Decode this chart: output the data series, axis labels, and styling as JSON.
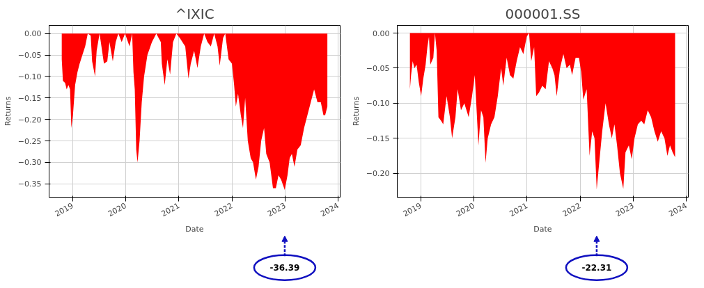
{
  "chart_data": [
    {
      "type": "area",
      "title": "^IXIC",
      "xlabel": "Date",
      "ylabel": "Returns",
      "grid": true,
      "x": [
        "2018-10-19",
        "2018-10-27",
        "2018-11-11",
        "2018-11-22",
        "2018-12-04",
        "2018-12-15",
        "2018-12-24",
        "2019-01-04",
        "2019-01-19",
        "2019-02-04",
        "2019-02-19",
        "2019-03-10",
        "2019-03-29",
        "2019-04-16",
        "2019-05-06",
        "2019-05-16",
        "2019-06-05",
        "2019-06-16",
        "2019-07-06",
        "2019-08-05",
        "2019-08-28",
        "2019-09-12",
        "2019-10-05",
        "2019-10-25",
        "2019-11-12",
        "2019-12-05",
        "2019-12-28",
        "2020-01-28",
        "2020-02-15",
        "2020-02-24",
        "2020-03-04",
        "2020-03-14",
        "2020-03-23",
        "2020-04-06",
        "2020-04-21",
        "2020-05-07",
        "2020-05-30",
        "2020-06-30",
        "2020-07-30",
        "2020-08-30",
        "2020-09-06",
        "2020-09-26",
        "2020-10-14",
        "2020-11-02",
        "2020-11-22",
        "2020-12-15",
        "2021-01-07",
        "2021-02-14",
        "2021-03-08",
        "2021-03-24",
        "2021-04-16",
        "2021-05-09",
        "2021-06-01",
        "2021-06-24",
        "2021-07-17",
        "2021-08-09",
        "2021-09-01",
        "2021-09-24",
        "2021-10-09",
        "2021-11-01",
        "2021-11-16",
        "2021-12-09",
        "2022-01-01",
        "2022-01-16",
        "2022-01-28",
        "2022-02-12",
        "2022-03-03",
        "2022-03-18",
        "2022-04-02",
        "2022-04-20",
        "2022-05-10",
        "2022-05-26",
        "2022-06-15",
        "2022-07-03",
        "2022-07-21",
        "2022-08-10",
        "2022-08-25",
        "2022-09-17",
        "2022-10-10",
        "2022-10-30",
        "2022-11-17",
        "2022-12-05",
        "2022-12-30",
        "2023-01-18",
        "2023-02-02",
        "2023-02-17",
        "2023-03-07",
        "2023-03-27",
        "2023-04-19",
        "2023-05-12",
        "2023-06-04",
        "2023-06-27",
        "2023-07-20",
        "2023-08-12",
        "2023-09-04",
        "2023-09-22",
        "2023-10-04",
        "2023-10-19"
      ],
      "series": [
        {
          "color": "#ff0000",
          "values": [
            -0.06,
            -0.11,
            -0.115,
            -0.13,
            -0.12,
            -0.13,
            -0.22,
            -0.19,
            -0.12,
            -0.09,
            -0.07,
            -0.05,
            -0.03,
            0.0,
            -0.005,
            -0.065,
            -0.1,
            -0.04,
            0.0,
            -0.07,
            -0.065,
            -0.02,
            -0.065,
            -0.02,
            0.0,
            -0.02,
            0.0,
            -0.03,
            0.0,
            -0.09,
            -0.13,
            -0.27,
            -0.3,
            -0.25,
            -0.16,
            -0.1,
            -0.05,
            -0.02,
            0.0,
            -0.02,
            -0.07,
            -0.12,
            -0.06,
            -0.095,
            -0.02,
            0.0,
            -0.01,
            -0.03,
            -0.105,
            -0.07,
            -0.04,
            -0.08,
            -0.03,
            0.0,
            -0.02,
            -0.03,
            0.0,
            -0.03,
            -0.075,
            -0.01,
            0.0,
            -0.06,
            -0.07,
            -0.12,
            -0.17,
            -0.14,
            -0.19,
            -0.22,
            -0.15,
            -0.25,
            -0.29,
            -0.3,
            -0.34,
            -0.31,
            -0.25,
            -0.22,
            -0.28,
            -0.3,
            -0.36,
            -0.36,
            -0.33,
            -0.34,
            -0.364,
            -0.33,
            -0.29,
            -0.28,
            -0.31,
            -0.27,
            -0.26,
            -0.22,
            -0.19,
            -0.16,
            -0.13,
            -0.16,
            -0.16,
            -0.19,
            -0.19,
            -0.17
          ]
        }
      ],
      "xlim": [
        "2018-07-24",
        "2024-01-15"
      ],
      "xticks": [
        "2019",
        "2020",
        "2021",
        "2022",
        "2023",
        "2024"
      ],
      "ylim": [
        -0.381,
        0.019
      ],
      "yticks": [
        {
          "value": -0.35,
          "label": "−0.35"
        },
        {
          "value": -0.3,
          "label": "−0.30"
        },
        {
          "value": -0.25,
          "label": "−0.25"
        },
        {
          "value": -0.2,
          "label": "−0.20"
        },
        {
          "value": -0.15,
          "label": "−0.15"
        },
        {
          "value": -0.1,
          "label": "−0.10"
        },
        {
          "value": -0.05,
          "label": "−0.05"
        },
        {
          "value": 0,
          "label": "0.00"
        }
      ],
      "annotations": [
        "-36.39"
      ]
    },
    {
      "type": "area",
      "title": "000001.SS",
      "xlabel": "Date",
      "ylabel": "Returns",
      "grid": true,
      "x": [
        "2018-10-19",
        "2018-10-27",
        "2018-11-07",
        "2018-11-19",
        "2018-12-04",
        "2018-12-19",
        "2019-01-04",
        "2019-01-19",
        "2019-02-04",
        "2019-02-16",
        "2019-02-27",
        "2019-03-08",
        "2019-03-29",
        "2019-04-09",
        "2019-04-21",
        "2019-05-03",
        "2019-05-21",
        "2019-06-05",
        "2019-06-28",
        "2019-07-21",
        "2019-08-05",
        "2019-08-28",
        "2019-09-12",
        "2019-10-05",
        "2019-10-28",
        "2019-11-27",
        "2019-12-20",
        "2020-01-08",
        "2020-02-02",
        "2020-02-20",
        "2020-03-07",
        "2020-03-22",
        "2020-04-06",
        "2020-04-29",
        "2020-05-22",
        "2020-06-14",
        "2020-07-07",
        "2020-07-22",
        "2020-08-14",
        "2020-09-06",
        "2020-09-29",
        "2020-10-22",
        "2020-11-14",
        "2020-12-07",
        "2020-12-30",
        "2021-01-15",
        "2021-01-30",
        "2021-02-19",
        "2021-03-05",
        "2021-03-24",
        "2021-04-16",
        "2021-05-09",
        "2021-06-01",
        "2021-06-24",
        "2021-07-09",
        "2021-07-24",
        "2021-08-16",
        "2021-09-08",
        "2021-09-30",
        "2021-10-23",
        "2021-11-07",
        "2021-12-01",
        "2021-12-24",
        "2022-01-08",
        "2022-01-23",
        "2022-02-15",
        "2022-03-07",
        "2022-03-25",
        "2022-04-10",
        "2022-04-25",
        "2022-05-10",
        "2022-06-02",
        "2022-06-25",
        "2022-07-18",
        "2022-08-07",
        "2022-08-25",
        "2022-09-12",
        "2022-10-02",
        "2022-10-25",
        "2022-11-09",
        "2022-12-02",
        "2022-12-22",
        "2023-01-10",
        "2023-02-02",
        "2023-02-25",
        "2023-03-18",
        "2023-04-11",
        "2023-05-04",
        "2023-05-27",
        "2023-06-19",
        "2023-07-12",
        "2023-08-04",
        "2023-08-24",
        "2023-09-11",
        "2023-09-29",
        "2023-10-16"
      ],
      "series": [
        {
          "color": "#ff0000",
          "values": [
            -0.08,
            -0.06,
            -0.04,
            -0.05,
            -0.045,
            -0.07,
            -0.09,
            -0.065,
            -0.045,
            -0.02,
            -0.005,
            -0.045,
            -0.035,
            0.0,
            -0.025,
            -0.12,
            -0.125,
            -0.13,
            -0.09,
            -0.12,
            -0.15,
            -0.12,
            -0.08,
            -0.11,
            -0.1,
            -0.12,
            -0.09,
            -0.06,
            -0.16,
            -0.11,
            -0.12,
            -0.185,
            -0.15,
            -0.13,
            -0.12,
            -0.09,
            -0.05,
            -0.075,
            -0.035,
            -0.06,
            -0.065,
            -0.04,
            -0.02,
            -0.03,
            -0.005,
            0.0,
            -0.04,
            -0.02,
            -0.09,
            -0.085,
            -0.075,
            -0.08,
            -0.04,
            -0.05,
            -0.06,
            -0.09,
            -0.05,
            -0.03,
            -0.05,
            -0.045,
            -0.06,
            -0.035,
            -0.035,
            -0.055,
            -0.095,
            -0.08,
            -0.175,
            -0.14,
            -0.15,
            -0.223,
            -0.19,
            -0.14,
            -0.1,
            -0.13,
            -0.15,
            -0.13,
            -0.16,
            -0.2,
            -0.222,
            -0.17,
            -0.16,
            -0.18,
            -0.15,
            -0.13,
            -0.125,
            -0.13,
            -0.11,
            -0.12,
            -0.14,
            -0.155,
            -0.14,
            -0.15,
            -0.175,
            -0.16,
            -0.17,
            -0.177
          ]
        }
      ],
      "xlim": [
        "2018-07-24",
        "2024-01-15"
      ],
      "xticks": [
        "2019",
        "2020",
        "2021",
        "2022",
        "2023",
        "2024"
      ],
      "ylim": [
        -0.234,
        0.011
      ],
      "yticks": [
        {
          "value": -0.2,
          "label": "−0.20"
        },
        {
          "value": -0.15,
          "label": "−0.15"
        },
        {
          "value": -0.1,
          "label": "−0.10"
        },
        {
          "value": -0.05,
          "label": "−0.05"
        },
        {
          "value": 0,
          "label": "0.00"
        }
      ],
      "annotations": [
        "-22.31"
      ]
    }
  ]
}
